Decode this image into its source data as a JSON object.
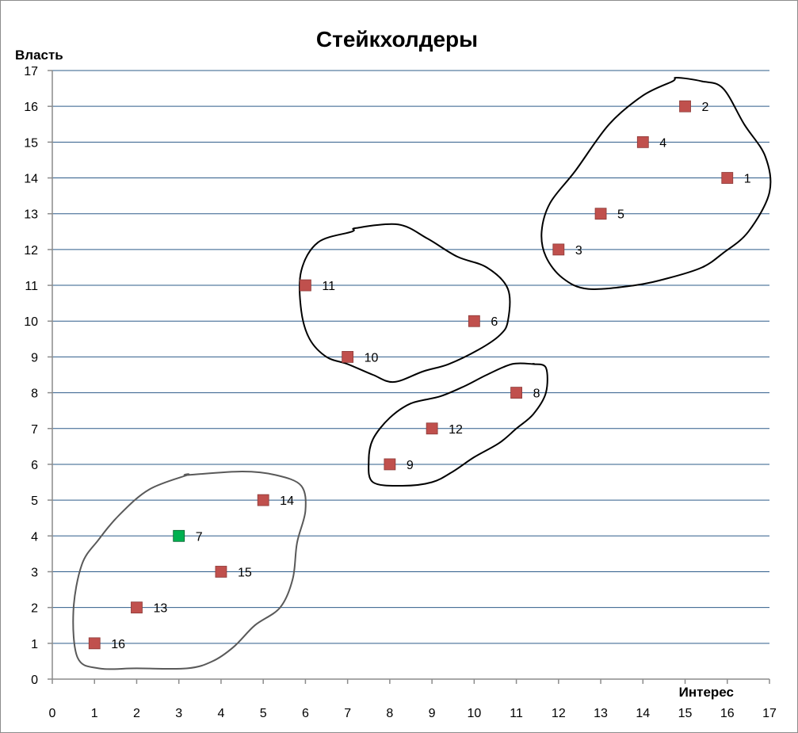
{
  "chart_data": {
    "type": "scatter",
    "title": "Стейкхолдеры",
    "xlabel": "Интерес",
    "ylabel": "Власть",
    "xlim": [
      0,
      17
    ],
    "ylim": [
      0,
      17
    ],
    "xticks": [
      "0",
      "1",
      "2",
      "3",
      "4",
      "5",
      "6",
      "7",
      "8",
      "9",
      "10",
      "11",
      "12",
      "13",
      "14",
      "15",
      "16",
      "17"
    ],
    "yticks": [
      "0",
      "1",
      "2",
      "3",
      "4",
      "5",
      "6",
      "7",
      "8",
      "9",
      "10",
      "11",
      "12",
      "13",
      "14",
      "15",
      "16",
      "17"
    ],
    "grid": "horizontal",
    "legend": "none",
    "colors": {
      "default_marker": "#c0504d",
      "highlight_marker": "#00b050",
      "gridline": "#2e5c8a",
      "outline_black": "#000000",
      "outline_gray": "#595959"
    },
    "points": [
      {
        "label": "1",
        "x": 16,
        "y": 14
      },
      {
        "label": "2",
        "x": 15,
        "y": 16
      },
      {
        "label": "3",
        "x": 12,
        "y": 12
      },
      {
        "label": "4",
        "x": 14,
        "y": 15
      },
      {
        "label": "5",
        "x": 13,
        "y": 13
      },
      {
        "label": "6",
        "x": 10,
        "y": 10
      },
      {
        "label": "7",
        "x": 3,
        "y": 4,
        "highlight": true
      },
      {
        "label": "8",
        "x": 11,
        "y": 8
      },
      {
        "label": "9",
        "x": 8,
        "y": 6
      },
      {
        "label": "10",
        "x": 7,
        "y": 9
      },
      {
        "label": "11",
        "x": 6,
        "y": 11
      },
      {
        "label": "12",
        "x": 9,
        "y": 7
      },
      {
        "label": "13",
        "x": 2,
        "y": 2
      },
      {
        "label": "14",
        "x": 5,
        "y": 5
      },
      {
        "label": "15",
        "x": 4,
        "y": 3
      },
      {
        "label": "16",
        "x": 1,
        "y": 1
      }
    ],
    "groups": [
      {
        "name": "top-right",
        "color": "#000000",
        "members": [
          "1",
          "2",
          "3",
          "4",
          "5"
        ],
        "outline": [
          [
            14.8,
            16.8
          ],
          [
            15.4,
            16.7
          ],
          [
            15.9,
            16.5
          ],
          [
            16.4,
            15.5
          ],
          [
            16.9,
            14.6
          ],
          [
            17.0,
            13.6
          ],
          [
            16.5,
            12.5
          ],
          [
            15.9,
            11.9
          ],
          [
            15.4,
            11.5
          ],
          [
            14.6,
            11.2
          ],
          [
            13.8,
            11.0
          ],
          [
            12.7,
            10.9
          ],
          [
            12.1,
            11.2
          ],
          [
            11.7,
            11.8
          ],
          [
            11.6,
            12.5
          ],
          [
            11.8,
            13.3
          ],
          [
            12.4,
            14.2
          ],
          [
            13.2,
            15.5
          ],
          [
            14.0,
            16.3
          ],
          [
            14.7,
            16.7
          ]
        ]
      },
      {
        "name": "middle-top",
        "color": "#000000",
        "members": [
          "6",
          "10",
          "11"
        ],
        "outline": [
          [
            7.2,
            12.6
          ],
          [
            8.2,
            12.7
          ],
          [
            8.9,
            12.3
          ],
          [
            9.6,
            11.8
          ],
          [
            10.3,
            11.5
          ],
          [
            10.8,
            10.9
          ],
          [
            10.8,
            10.0
          ],
          [
            10.6,
            9.6
          ],
          [
            10.1,
            9.2
          ],
          [
            9.4,
            8.8
          ],
          [
            8.8,
            8.6
          ],
          [
            8.1,
            8.3
          ],
          [
            7.6,
            8.5
          ],
          [
            7.0,
            8.8
          ],
          [
            6.5,
            9.0
          ],
          [
            6.1,
            9.5
          ],
          [
            5.9,
            10.3
          ],
          [
            5.9,
            11.4
          ],
          [
            6.3,
            12.2
          ],
          [
            7.1,
            12.5
          ]
        ]
      },
      {
        "name": "middle-bottom",
        "color": "#000000",
        "members": [
          "8",
          "9",
          "12"
        ],
        "outline": [
          [
            11.4,
            8.8
          ],
          [
            11.7,
            8.7
          ],
          [
            11.7,
            8.0
          ],
          [
            11.4,
            7.4
          ],
          [
            11.0,
            7.0
          ],
          [
            10.6,
            6.6
          ],
          [
            10.0,
            6.2
          ],
          [
            9.5,
            5.8
          ],
          [
            9.0,
            5.5
          ],
          [
            8.3,
            5.4
          ],
          [
            7.6,
            5.5
          ],
          [
            7.5,
            6.1
          ],
          [
            7.6,
            6.7
          ],
          [
            8.0,
            7.3
          ],
          [
            8.5,
            7.7
          ],
          [
            9.2,
            7.9
          ],
          [
            9.8,
            8.2
          ],
          [
            10.3,
            8.5
          ],
          [
            10.9,
            8.8
          ],
          [
            11.4,
            8.8
          ]
        ]
      },
      {
        "name": "bottom-left",
        "color": "#595959",
        "members": [
          "7",
          "13",
          "14",
          "15",
          "16"
        ],
        "outline": [
          [
            3.2,
            5.7
          ],
          [
            4.5,
            5.8
          ],
          [
            5.3,
            5.7
          ],
          [
            5.9,
            5.4
          ],
          [
            6.0,
            4.7
          ],
          [
            5.8,
            3.8
          ],
          [
            5.7,
            2.8
          ],
          [
            5.4,
            2.0
          ],
          [
            4.8,
            1.5
          ],
          [
            4.3,
            0.9
          ],
          [
            3.8,
            0.5
          ],
          [
            3.2,
            0.3
          ],
          [
            2.0,
            0.3
          ],
          [
            1.1,
            0.3
          ],
          [
            0.6,
            0.6
          ],
          [
            0.5,
            1.9
          ],
          [
            0.7,
            3.2
          ],
          [
            1.1,
            3.9
          ],
          [
            1.6,
            4.6
          ],
          [
            2.3,
            5.3
          ],
          [
            3.2,
            5.7
          ]
        ]
      }
    ]
  }
}
